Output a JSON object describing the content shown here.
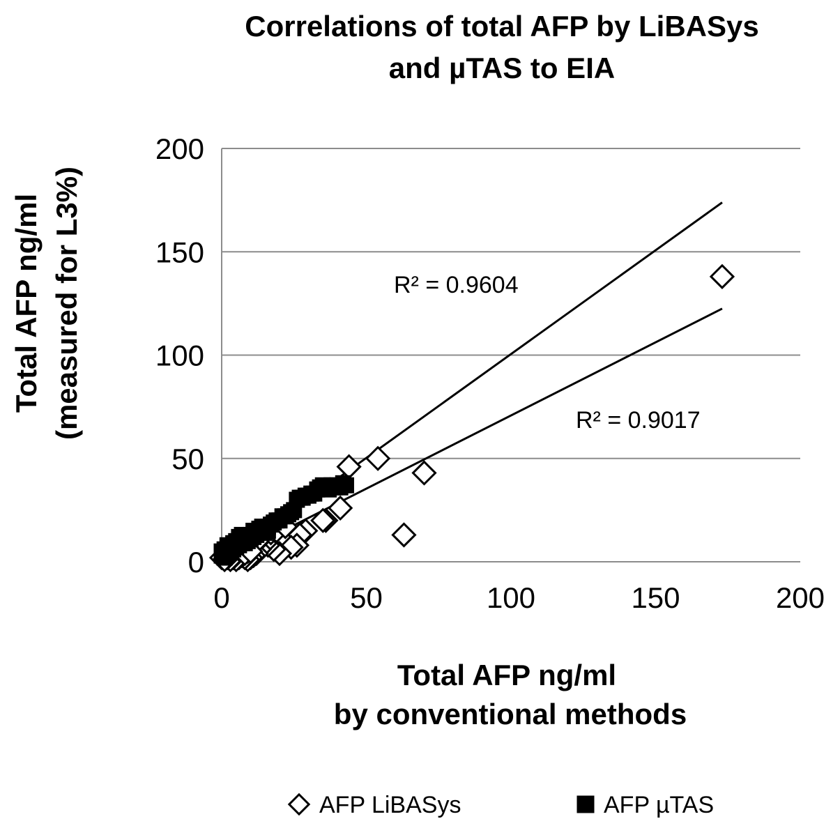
{
  "chart_data": {
    "type": "scatter",
    "title_lines": [
      "Correlations of total AFP by LiBASys",
      "and µTAS to EIA"
    ],
    "xlabel_lines": [
      "Total AFP ng/ml",
      "by conventional methods"
    ],
    "ylabel_lines": [
      "Total AFP ng/ml",
      "(measured for L3%)"
    ],
    "xlim": [
      0,
      200
    ],
    "ylim": [
      0,
      200
    ],
    "xticks": [
      0,
      50,
      100,
      150,
      200
    ],
    "yticks": [
      0,
      50,
      100,
      150,
      200
    ],
    "x_tick_labels": [
      "0",
      "50",
      "100",
      "150",
      "200"
    ],
    "y_tick_labels": [
      "0",
      "50",
      "100",
      "150",
      "200"
    ],
    "grid": "horizontal",
    "legend_position": "bottom",
    "series": [
      {
        "name": "AFP LiBASys",
        "marker": "diamond-open",
        "color": "#000000",
        "points": [
          [
            173,
            138
          ],
          [
            70,
            43
          ],
          [
            63,
            13
          ],
          [
            54,
            50
          ],
          [
            44,
            46
          ],
          [
            41,
            26
          ],
          [
            36,
            20
          ],
          [
            35,
            20
          ],
          [
            29,
            15
          ],
          [
            27,
            13
          ],
          [
            26,
            8
          ],
          [
            24,
            7
          ],
          [
            20,
            4
          ],
          [
            18,
            6
          ],
          [
            16,
            8
          ],
          [
            15,
            9
          ],
          [
            13,
            6
          ],
          [
            12,
            4
          ],
          [
            11,
            3
          ],
          [
            10,
            2
          ],
          [
            9,
            1
          ],
          [
            8,
            2
          ],
          [
            7,
            3
          ],
          [
            6,
            4
          ],
          [
            5,
            3
          ],
          [
            4,
            4
          ],
          [
            3,
            3
          ],
          [
            2,
            5
          ],
          [
            1,
            3
          ],
          [
            0,
            2
          ],
          [
            9,
            5
          ],
          [
            10,
            7
          ],
          [
            8,
            6
          ],
          [
            7,
            5
          ],
          [
            6,
            2
          ],
          [
            5,
            1
          ],
          [
            4,
            2
          ],
          [
            3,
            1
          ],
          [
            11,
            8
          ],
          [
            12,
            10
          ],
          [
            14,
            12
          ],
          [
            13,
            11
          ],
          [
            17,
            14
          ],
          [
            19,
            15
          ],
          [
            22,
            17
          ],
          [
            6,
            6
          ],
          [
            2,
            2
          ],
          [
            1,
            1
          ],
          [
            8,
            4
          ],
          [
            10,
            5
          ]
        ],
        "trendline": {
          "label": "R² = 0.9017",
          "x_range": [
            0,
            173
          ],
          "slope": 0.708,
          "intercept": 0
        }
      },
      {
        "name": "AFP µTAS",
        "marker": "square-filled",
        "color": "#000000",
        "points": [
          [
            43,
            37
          ],
          [
            42,
            38
          ],
          [
            41,
            36
          ],
          [
            40,
            37
          ],
          [
            39,
            36
          ],
          [
            38,
            37
          ],
          [
            37,
            35
          ],
          [
            36,
            36
          ],
          [
            35,
            37
          ],
          [
            34,
            36
          ],
          [
            33,
            35
          ],
          [
            32,
            33
          ],
          [
            31,
            33
          ],
          [
            30,
            32
          ],
          [
            29,
            32
          ],
          [
            28,
            31
          ],
          [
            27,
            31
          ],
          [
            26,
            30
          ],
          [
            25,
            25
          ],
          [
            24,
            24
          ],
          [
            23,
            23
          ],
          [
            22,
            22
          ],
          [
            21,
            22
          ],
          [
            20,
            20
          ],
          [
            19,
            20
          ],
          [
            18,
            19
          ],
          [
            17,
            18
          ],
          [
            16,
            17
          ],
          [
            15,
            16
          ],
          [
            14,
            17
          ],
          [
            13,
            16
          ],
          [
            12,
            14
          ],
          [
            11,
            15
          ],
          [
            10,
            13
          ],
          [
            9,
            12
          ],
          [
            8,
            11
          ],
          [
            7,
            13
          ],
          [
            6,
            12
          ],
          [
            5,
            10
          ],
          [
            4,
            9
          ],
          [
            3,
            7
          ],
          [
            2,
            8
          ],
          [
            1,
            6
          ],
          [
            0,
            5
          ],
          [
            0,
            3
          ],
          [
            1,
            2
          ],
          [
            2,
            4
          ],
          [
            3,
            5
          ],
          [
            4,
            6
          ],
          [
            5,
            7
          ],
          [
            6,
            8
          ],
          [
            7,
            9
          ],
          [
            8,
            9
          ],
          [
            9,
            10
          ],
          [
            10,
            11
          ],
          [
            11,
            12
          ],
          [
            12,
            13
          ],
          [
            13,
            14
          ],
          [
            15,
            14
          ],
          [
            16,
            15
          ]
        ],
        "trendline": {
          "label": "R² = 0.9604",
          "x_range": [
            0,
            173
          ],
          "slope": 1.005,
          "intercept": 0
        }
      }
    ]
  }
}
